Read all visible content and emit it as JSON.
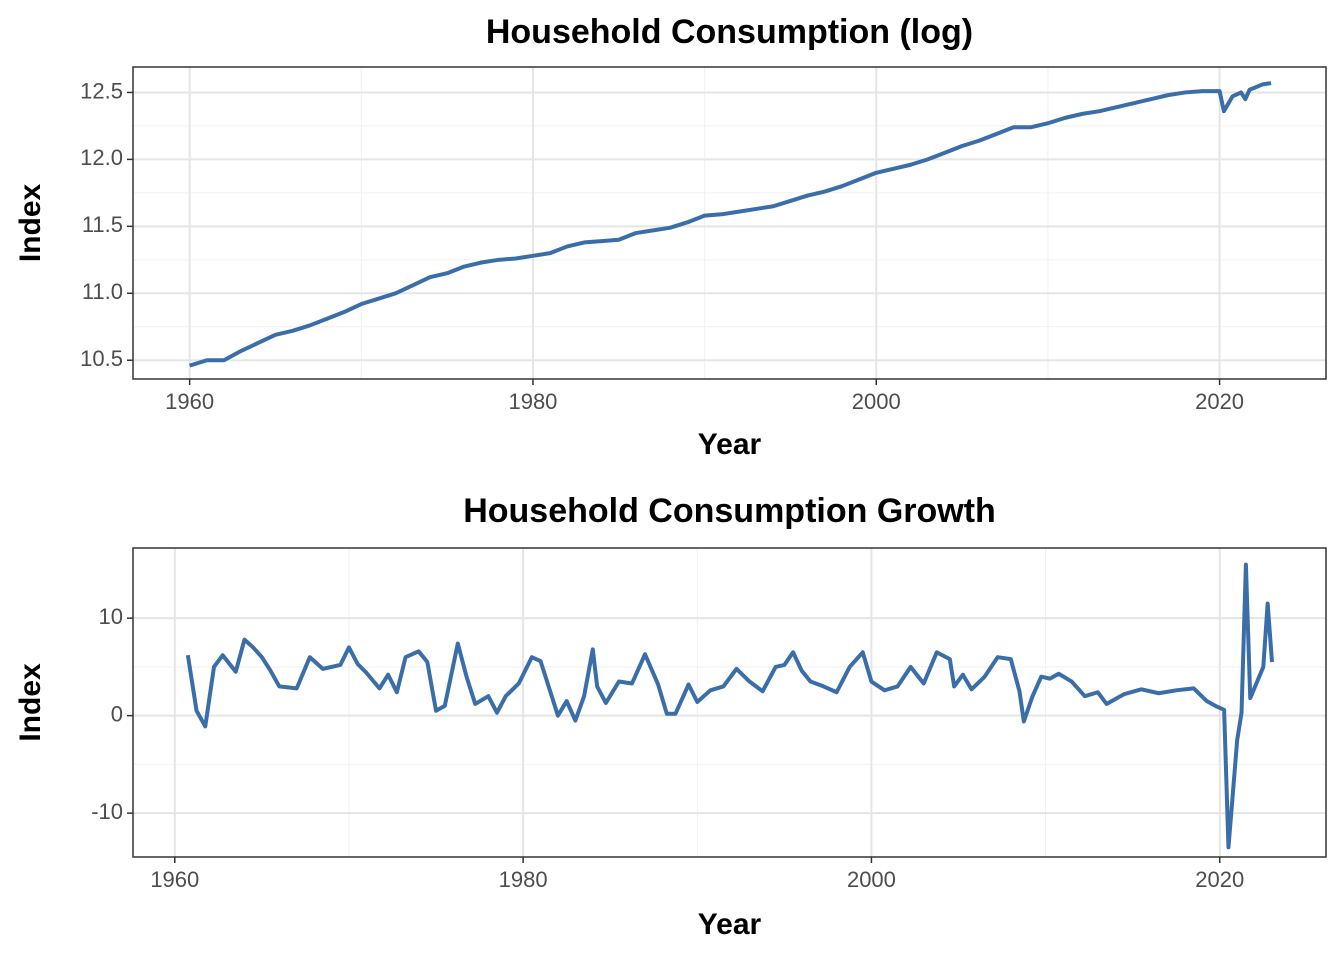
{
  "chart_data": [
    {
      "type": "line",
      "title": "Household Consumption (log)",
      "x_label": "Year",
      "y_label": "Index",
      "xlim": [
        1956.7,
        2026.2
      ],
      "xticks": [
        1960,
        1980,
        2000,
        2020
      ],
      "ylim": [
        10.36,
        12.69
      ],
      "yticks": [
        10.5,
        {
          "value": 11,
          "label": "11.0"
        },
        11.5,
        {
          "value": 12,
          "label": "12.0"
        },
        12.5
      ],
      "grid": true,
      "x": [
        1960,
        1961,
        1962,
        1963,
        1964,
        1965,
        1966,
        1967,
        1968,
        1969,
        1970,
        1971,
        1972,
        1973,
        1974,
        1975,
        1976,
        1977,
        1978,
        1979,
        1980,
        1981,
        1982,
        1983,
        1984,
        1985,
        1986,
        1987,
        1988,
        1989,
        1990,
        1991,
        1992,
        1993,
        1994,
        1995,
        1996,
        1997,
        1998,
        1999,
        2000,
        2001,
        2002,
        2003,
        2004,
        2005,
        2006,
        2007,
        2008,
        2009,
        2010,
        2011,
        2012,
        2013,
        2014,
        2015,
        2016,
        2017,
        2018,
        2019,
        2020,
        2020.25,
        2020.75,
        2021.25,
        2021.5,
        2021.75,
        2022.5,
        2023
      ],
      "series": [
        {
          "name": "Index",
          "color": "#3a6ea8",
          "values": [
            10.46,
            10.5,
            10.5,
            10.57,
            10.63,
            10.69,
            10.72,
            10.76,
            10.81,
            10.86,
            10.92,
            10.96,
            11.0,
            11.06,
            11.12,
            11.15,
            11.2,
            11.23,
            11.25,
            11.26,
            11.28,
            11.3,
            11.35,
            11.38,
            11.39,
            11.4,
            11.45,
            11.47,
            11.49,
            11.53,
            11.58,
            11.59,
            11.61,
            11.63,
            11.65,
            11.69,
            11.73,
            11.76,
            11.8,
            11.85,
            11.9,
            11.93,
            11.96,
            12.0,
            12.05,
            12.1,
            12.14,
            12.19,
            12.24,
            12.24,
            12.27,
            12.31,
            12.34,
            12.36,
            12.39,
            12.42,
            12.45,
            12.48,
            12.5,
            12.51,
            12.51,
            12.36,
            12.47,
            12.5,
            12.45,
            12.52,
            12.56,
            12.57
          ]
        }
      ]
    },
    {
      "type": "line",
      "title": "Household Consumption Growth",
      "x_label": "Year",
      "y_label": "Index",
      "xlim": [
        1957.6,
        2026.1
      ],
      "xticks": [
        1960,
        1980,
        2000,
        2020
      ],
      "ylim": [
        -14.5,
        17.2
      ],
      "yticks": [
        -10,
        0,
        10
      ],
      "grid": true,
      "x": [
        1960.75,
        1961.25,
        1961.75,
        1962.25,
        1962.75,
        1963.5,
        1964,
        1964.5,
        1965,
        1965.5,
        1966,
        1967,
        1967.75,
        1968.5,
        1969.5,
        1970,
        1970.5,
        1971,
        1971.75,
        1972.25,
        1972.75,
        1973.25,
        1974,
        1974.5,
        1975,
        1975.5,
        1976.25,
        1976.75,
        1977.25,
        1978,
        1978.5,
        1979,
        1979.75,
        1980.5,
        1981,
        1981.5,
        1982,
        1982.5,
        1983,
        1983.5,
        1984,
        1984.25,
        1984.75,
        1985.5,
        1986.25,
        1987,
        1987.75,
        1988.25,
        1988.75,
        1989.5,
        1990,
        1990.75,
        1991.5,
        1992.25,
        1993,
        1993.75,
        1994.5,
        1995,
        1995.5,
        1996,
        1996.5,
        1997.25,
        1998,
        1998.75,
        1999.5,
        2000,
        2000.75,
        2001.5,
        2002.25,
        2003,
        2003.75,
        2004.5,
        2004.75,
        2005.25,
        2005.75,
        2006.5,
        2007.25,
        2008,
        2008.5,
        2008.75,
        2009.25,
        2009.75,
        2010.25,
        2010.75,
        2011.5,
        2012.25,
        2013,
        2013.5,
        2014.5,
        2015.5,
        2016.5,
        2017.5,
        2018.5,
        2019.25,
        2019.75,
        2020.25,
        2020.5,
        2021,
        2021.25,
        2021.5,
        2021.75,
        2022.5,
        2022.75,
        2023
      ],
      "series": [
        {
          "name": "Index",
          "color": "#3a6ea8",
          "values": [
            6.2,
            0.5,
            -1.1,
            5,
            6.2,
            4.5,
            7.8,
            7,
            6,
            4.6,
            3,
            2.8,
            6,
            4.8,
            5.2,
            7,
            5.3,
            4.4,
            2.8,
            4.2,
            2.4,
            6,
            6.6,
            5.5,
            0.5,
            1,
            7.4,
            4,
            1.2,
            2,
            0.3,
            2,
            3.3,
            6,
            5.6,
            2.8,
            0,
            1.5,
            -0.5,
            2,
            6.8,
            3,
            1.3,
            3.5,
            3.3,
            6.3,
            3.2,
            0.2,
            0.2,
            3.2,
            1.4,
            2.6,
            3,
            4.8,
            3.5,
            2.5,
            5,
            5.2,
            6.5,
            4.6,
            3.5,
            3,
            2.4,
            5,
            6.5,
            3.5,
            2.6,
            3,
            5,
            3.3,
            6.5,
            5.8,
            3,
            4.2,
            2.7,
            4,
            6,
            5.8,
            2.5,
            -0.6,
            2,
            4,
            3.8,
            4.3,
            3.5,
            2,
            2.4,
            1.2,
            2.2,
            2.7,
            2.3,
            2.6,
            2.8,
            1.5,
            1,
            0.6,
            -13.5,
            -2.5,
            0.3,
            15.5,
            1.8,
            5,
            11.5,
            5.5
          ]
        }
      ]
    }
  ]
}
